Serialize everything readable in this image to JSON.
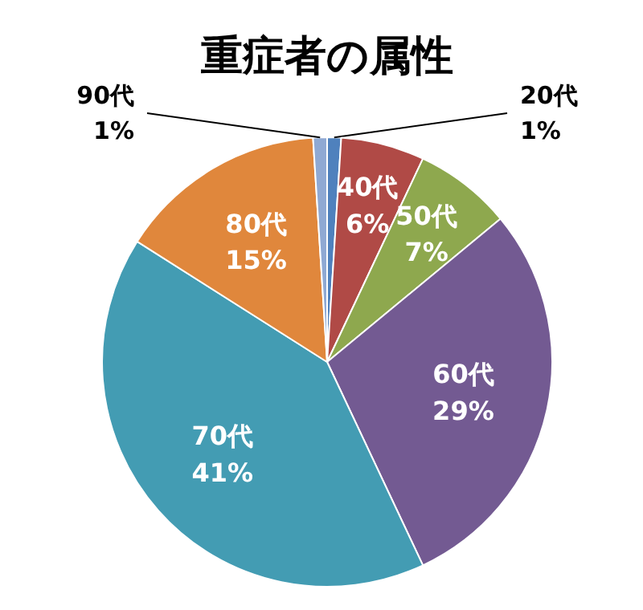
{
  "chart_data": {
    "type": "pie",
    "title": "重症者の属性",
    "categories": [
      "20代",
      "40代",
      "50代",
      "60代",
      "70代",
      "80代",
      "90代"
    ],
    "values": [
      1,
      6,
      7,
      29,
      41,
      15,
      1
    ],
    "value_labels": [
      "1%",
      "6%",
      "7%",
      "29%",
      "41%",
      "15%",
      "1%"
    ],
    "colors": [
      "#4f81bd",
      "#b04a46",
      "#8ea84e",
      "#735a92",
      "#439cb3",
      "#e0873c",
      "#8fa9d3"
    ]
  }
}
